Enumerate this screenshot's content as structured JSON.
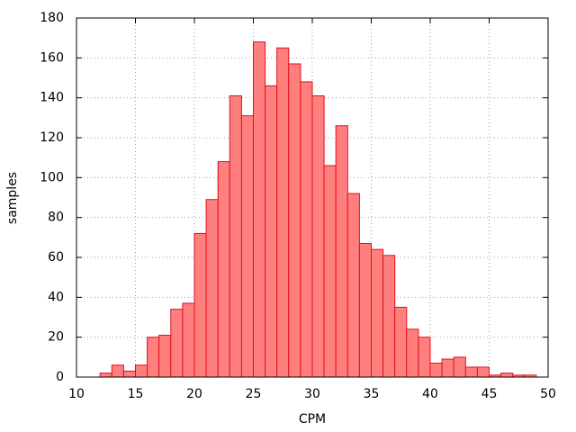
{
  "chart_data": {
    "type": "histogram",
    "xlabel": "CPM",
    "ylabel": "samples",
    "bins": [
      12,
      13,
      14,
      15,
      16,
      17,
      18,
      19,
      20,
      21,
      22,
      23,
      24,
      25,
      26,
      27,
      28,
      29,
      30,
      31,
      32,
      33,
      34,
      35,
      36,
      37,
      38,
      39,
      40,
      41,
      42,
      43,
      44,
      45,
      46,
      47,
      48,
      49
    ],
    "values": [
      2,
      6,
      3,
      6,
      20,
      21,
      34,
      37,
      72,
      89,
      108,
      141,
      131,
      168,
      146,
      165,
      157,
      148,
      141,
      106,
      126,
      92,
      67,
      64,
      61,
      35,
      24,
      20,
      7,
      9,
      10,
      5,
      5,
      1,
      2,
      1,
      1
    ],
    "color": "#ff7f7f",
    "edgecolor": "#e0101a",
    "xlim": [
      10,
      50
    ],
    "xticks": [
      10,
      15,
      20,
      25,
      30,
      35,
      40,
      45,
      50
    ],
    "ylim": [
      0,
      180
    ],
    "yticks": [
      0,
      20,
      40,
      60,
      80,
      100,
      120,
      140,
      160,
      180
    ],
    "grid": true
  }
}
